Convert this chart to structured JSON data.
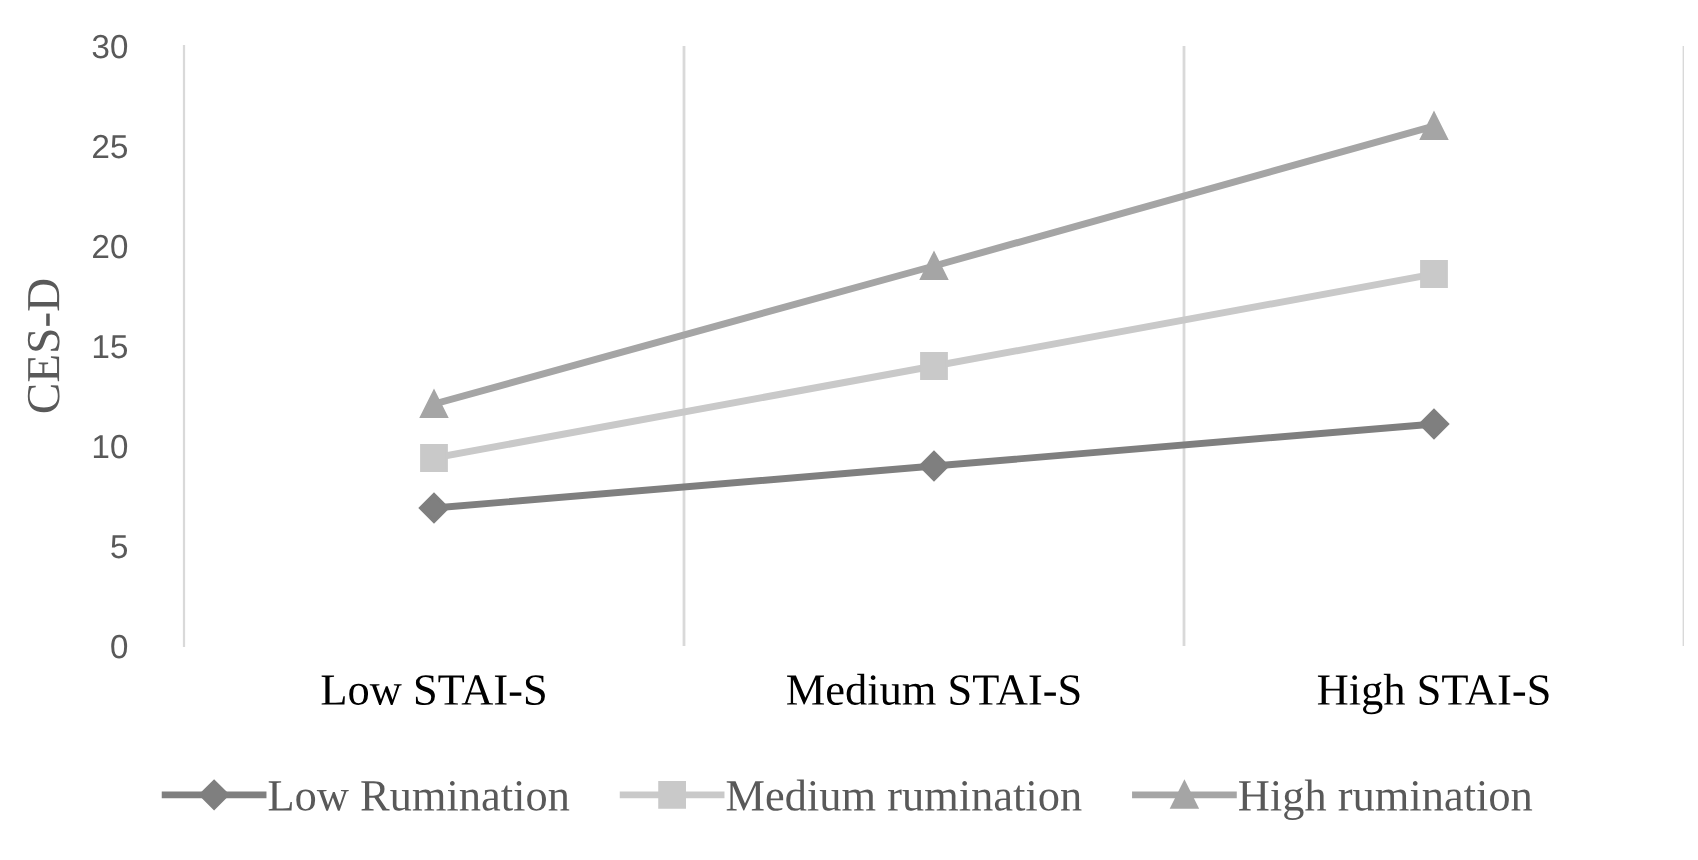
{
  "chart_data": {
    "type": "line",
    "ylabel": "CES-D",
    "categories": [
      "Low STAI-S",
      "Medium STAI-S",
      "High STAI-S"
    ],
    "series": [
      {
        "name": "Low Rumination",
        "color": "#7f7f7f",
        "marker": "diamond",
        "values": [
          6.9,
          9.0,
          11.1
        ]
      },
      {
        "name": "Medium rumination",
        "color": "#c9c9c9",
        "marker": "square",
        "values": [
          9.4,
          14.0,
          18.6
        ]
      },
      {
        "name": "High rumination",
        "color": "#a5a5a5",
        "marker": "triangle",
        "values": [
          12.1,
          19.0,
          26.0
        ]
      }
    ],
    "ylim": [
      0,
      30
    ],
    "yticks": [
      0,
      5,
      10,
      15,
      20,
      25,
      30
    ],
    "grid": "x",
    "legend": "bottom",
    "line_style": "solid"
  }
}
